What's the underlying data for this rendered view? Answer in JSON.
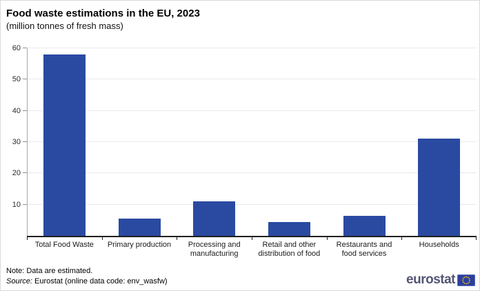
{
  "header": {
    "title": "Food waste estimations in the EU, 2023",
    "subtitle": "(million tonnes of fresh mass)"
  },
  "chart_data": {
    "type": "bar",
    "title": "Food waste estimations in the EU, 2023",
    "subtitle": "(million tonnes of fresh mass)",
    "categories": [
      "Total Food Waste",
      "Primary production",
      "Processing and manufacturing",
      "Retail and other distribution of food",
      "Restaurants and food services",
      "Households"
    ],
    "values": [
      58,
      5.5,
      11,
      4.5,
      6.5,
      31
    ],
    "unit": "million tonnes of fresh mass",
    "xlabel": "",
    "ylabel": "",
    "ylim": [
      0,
      60
    ],
    "yticks": [
      10,
      20,
      30,
      40,
      50,
      60
    ],
    "grid": "horizontal-light",
    "legend": "none",
    "bar_color": "#2a4aa2"
  },
  "footer": {
    "note": "Note: Data are estimated.",
    "source_label": "Source:",
    "source_text": "Eurostat (online data code: env_wasfw)",
    "logo_text": "eurostat"
  },
  "colors": {
    "bar": "#2a4aa2",
    "gridline": "#e9e9ef",
    "axis_line": "#a8a8a8",
    "baseline": "#1f1f1f",
    "logo_text": "#545474",
    "flag_blue": "#2c3f9e",
    "star_yellow": "#ffcc00"
  }
}
